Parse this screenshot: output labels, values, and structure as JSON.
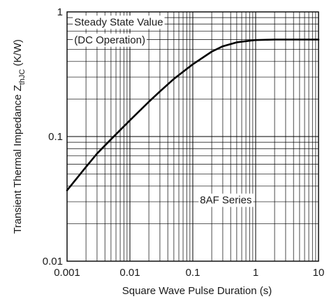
{
  "chart_data": {
    "type": "line",
    "xlabel": "Square Wave Pulse Duration (s)",
    "ylabel_main": "Transient Thermal Impedance Z",
    "ylabel_sub": "thJC",
    "ylabel_unit": " (K/W)",
    "x_scale": "log",
    "y_scale": "log",
    "xlim": [
      0.001,
      10
    ],
    "ylim": [
      0.01,
      1
    ],
    "x_ticks": [
      {
        "value": 0.001,
        "label": "0.001"
      },
      {
        "value": 0.01,
        "label": "0.01"
      },
      {
        "value": 0.1,
        "label": "0.1"
      },
      {
        "value": 1,
        "label": "1"
      },
      {
        "value": 10,
        "label": "10"
      }
    ],
    "y_ticks": [
      {
        "value": 0.01,
        "label": "0.01"
      },
      {
        "value": 0.1,
        "label": "0.1"
      },
      {
        "value": 1,
        "label": "1"
      }
    ],
    "grid": true,
    "annotations": [
      {
        "text": "Steady State Value",
        "x": 0.0013,
        "y": 0.82
      },
      {
        "text": "(DC Operation)",
        "x": 0.0013,
        "y": 0.59
      },
      {
        "text": "8AF Series",
        "x": 0.13,
        "y": 0.0306
      }
    ],
    "series": [
      {
        "color": "#000000",
        "x": [
          0.001,
          0.002,
          0.003,
          0.005,
          0.01,
          0.02,
          0.03,
          0.05,
          0.1,
          0.2,
          0.3,
          0.5,
          1,
          2,
          3,
          5,
          10
        ],
        "y": [
          0.037,
          0.057,
          0.073,
          0.095,
          0.135,
          0.19,
          0.23,
          0.29,
          0.38,
          0.48,
          0.53,
          0.57,
          0.595,
          0.6,
          0.6,
          0.6,
          0.6
        ]
      }
    ]
  }
}
